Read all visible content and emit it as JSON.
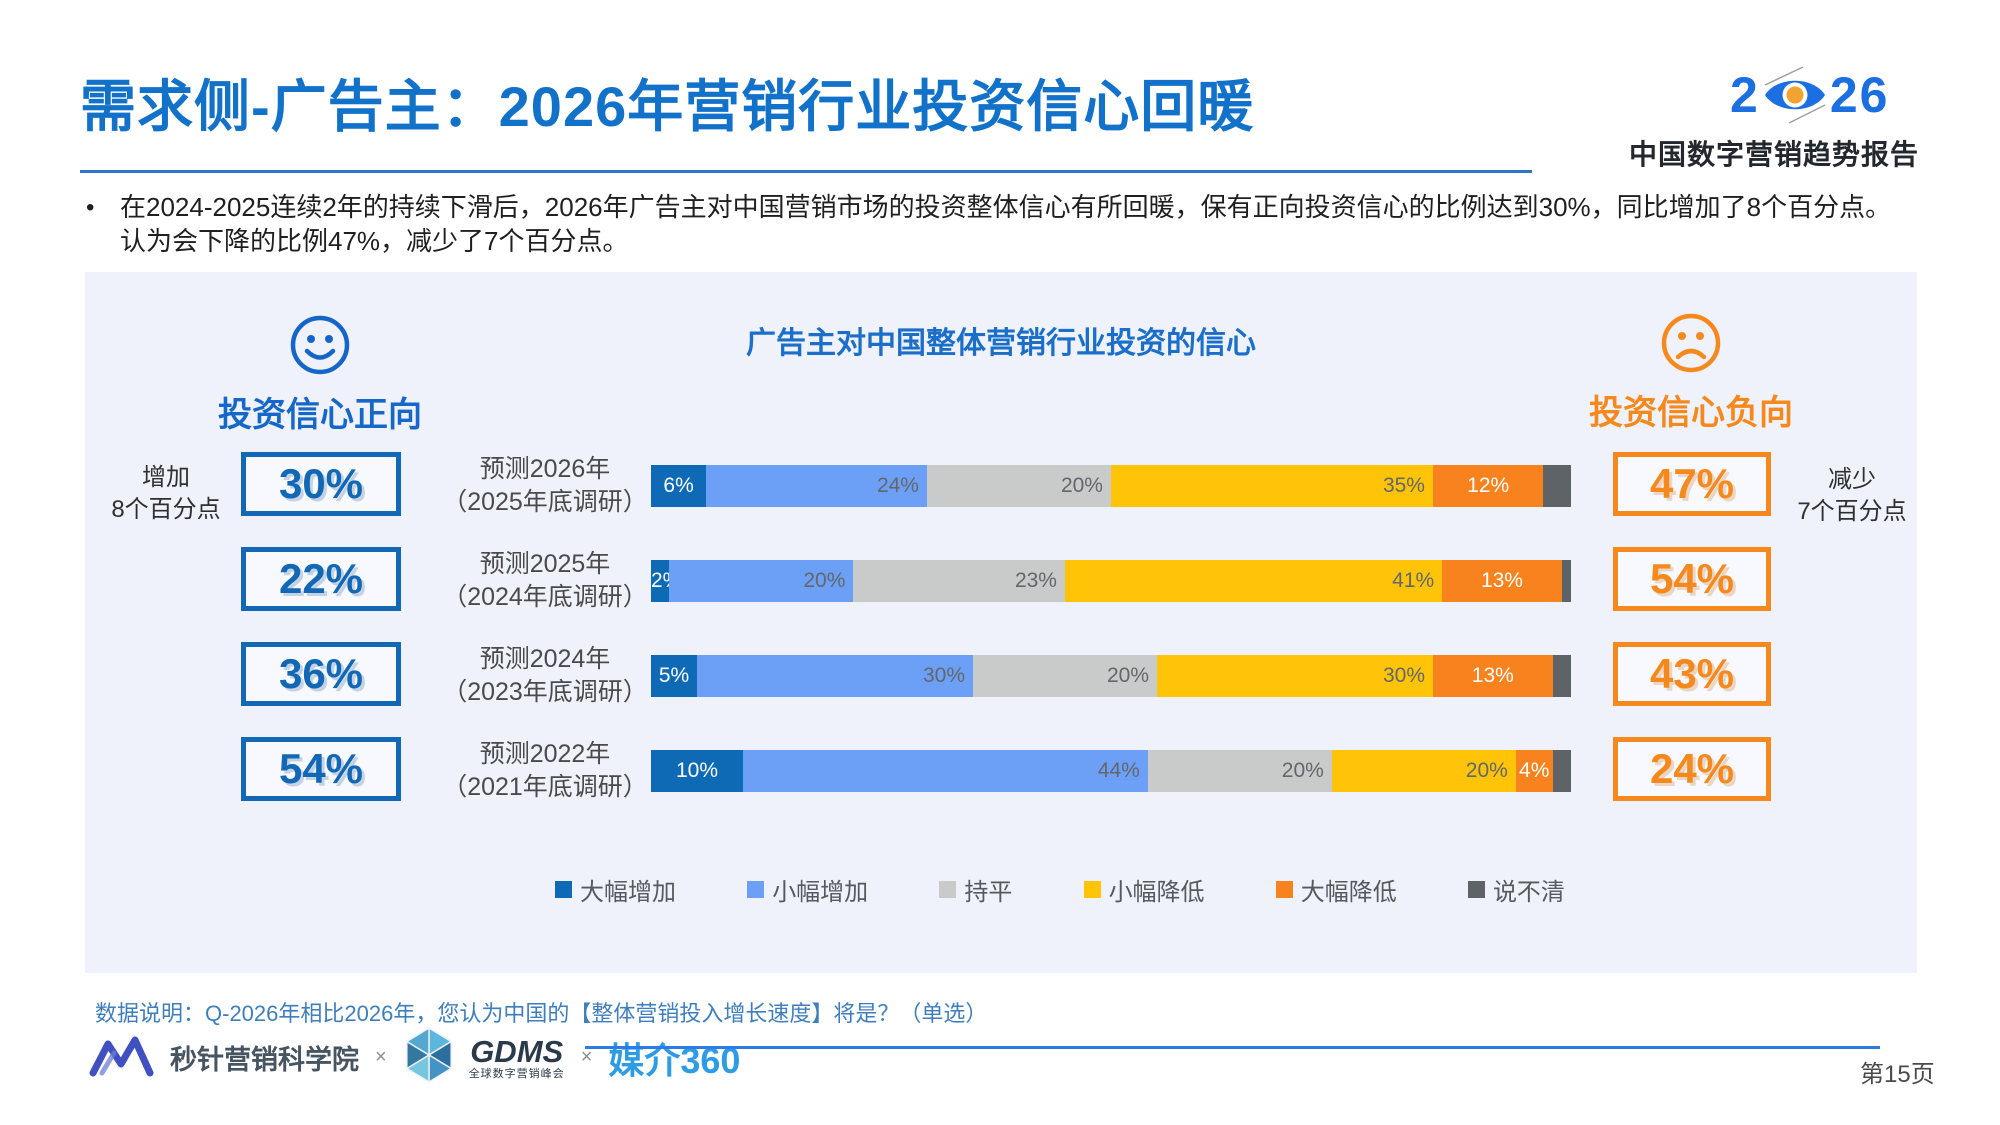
{
  "header": {
    "title": "需求侧-广告主：2026年营销行业投资信心回暖",
    "brand": {
      "year_prefix": "2",
      "year_suffix": "26",
      "subtitle": "中国数字营销趋势报告"
    }
  },
  "summary": {
    "bullet": "•",
    "text": "在2024-2025连续2年的持续下滑后，2026年广告主对中国营销市场的投资整体信心有所回暖，保有正向投资信心的比例达到30%，同比增加了8个百分点。认为会下降的比例47%，减少了7个百分点。"
  },
  "chart": {
    "title": "广告主对中国整体营销行业投资的信心",
    "positive": {
      "label": "投资信心正向",
      "note_line1": "增加",
      "note_line2": "8个百分点",
      "color": "#1567C8"
    },
    "negative": {
      "label": "投资信心负向",
      "note_line1": "减少",
      "note_line2": "7个百分点",
      "color": "#F5891D"
    }
  },
  "chart_data": {
    "type": "bar",
    "stacked": true,
    "orientation": "horizontal",
    "unit": "percent",
    "axis_range": [
      0,
      100
    ],
    "legend_position": "bottom",
    "series_names": [
      "大幅增加",
      "小幅增加",
      "持平",
      "小幅降低",
      "大幅降低",
      "说不清"
    ],
    "series_colors": [
      "#0E6AB5",
      "#6C9FF6",
      "#C9CBCA",
      "#FFC408",
      "#F8821D",
      "#5D6366"
    ],
    "rows": [
      {
        "label_line1": "预测2026年",
        "label_line2": "（2025年底调研）",
        "positive_total": "30%",
        "negative_total": "47%",
        "values": [
          6,
          24,
          20,
          35,
          12,
          3
        ],
        "value_labels": [
          "6%",
          "24%",
          "20%",
          "35%",
          "12%",
          ""
        ]
      },
      {
        "label_line1": "预测2025年",
        "label_line2": "（2024年底调研）",
        "positive_total": "22%",
        "negative_total": "54%",
        "values": [
          2,
          20,
          23,
          41,
          13,
          1
        ],
        "value_labels": [
          "2%",
          "20%",
          "23%",
          "41%",
          "13%",
          ""
        ]
      },
      {
        "label_line1": "预测2024年",
        "label_line2": "（2023年底调研）",
        "positive_total": "36%",
        "negative_total": "43%",
        "values": [
          5,
          30,
          20,
          30,
          13,
          2
        ],
        "value_labels": [
          "5%",
          "30%",
          "20%",
          "30%",
          "13%",
          ""
        ]
      },
      {
        "label_line1": "预测2022年",
        "label_line2": "（2021年底调研）",
        "positive_total": "54%",
        "negative_total": "24%",
        "values": [
          10,
          44,
          20,
          20,
          4,
          2
        ],
        "value_labels": [
          "10%",
          "44%",
          "20%",
          "20%",
          "4%",
          ""
        ]
      }
    ]
  },
  "footer": {
    "note": "数据说明：Q-2026年相比2026年，您认为中国的【整体营销投入增长速度】将是？（单选）",
    "partners": {
      "partner1": "秒针营销科学院",
      "sep1": "×",
      "partner2": "GDMS",
      "partner2_sub": "全球数字营销峰会",
      "sep2": "×",
      "partner3": "媒介360"
    },
    "page_number": "第15页"
  }
}
